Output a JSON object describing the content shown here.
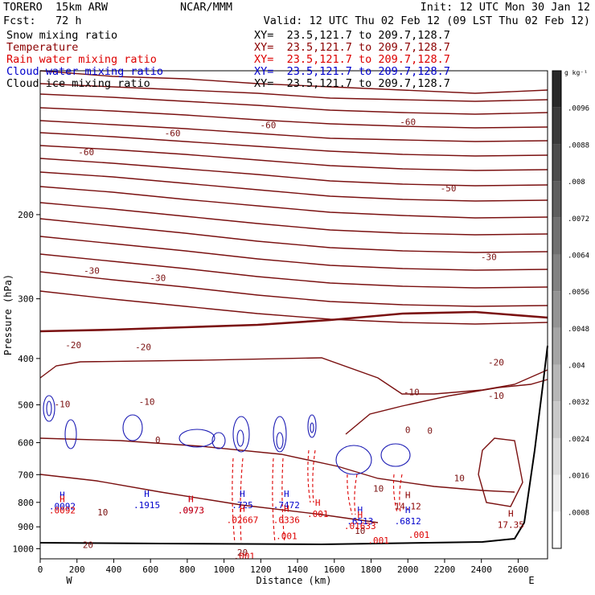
{
  "header": {
    "model": "TORERO  15km ARW",
    "center": "NCAR/MMM",
    "init": "Init: 12 UTC Mon 30 Jan 12",
    "fcst": "Fcst:   72 h",
    "valid": "Valid: 12 UTC Thu 02 Feb 12 (09 LST Thu 02 Feb 12)"
  },
  "fields": [
    {
      "name": "Snow mixing ratio",
      "xy": "XY=  23.5,121.7 to 209.7,128.7",
      "color": "#000000"
    },
    {
      "name": "Temperature",
      "xy": "XY=  23.5,121.7 to 209.7,128.7",
      "color": "#8b0000"
    },
    {
      "name": "Rain water mixing ratio",
      "xy": "XY=  23.5,121.7 to 209.7,128.7",
      "color": "#dd0000"
    },
    {
      "name": "Cloud water mixing ratio",
      "xy": "XY=  23.5,121.7 to 209.7,128.7",
      "color": "#0000cc"
    },
    {
      "name": "Cloud ice mixing ratio",
      "xy": "XY=  23.5,121.7 to 209.7,128.7",
      "color": "#000000"
    }
  ],
  "chart_data": {
    "type": "contour",
    "xlabel": "Distance (km)",
    "ylabel": "Pressure (hPa)",
    "xlim": [
      0,
      2760
    ],
    "ylim": [
      1050,
      100
    ],
    "y_scale": "log",
    "x_ticks": [
      0,
      200,
      400,
      600,
      800,
      1000,
      1200,
      1400,
      1600,
      1800,
      2000,
      2200,
      2400,
      2600
    ],
    "y_ticks": [
      200,
      300,
      400,
      500,
      600,
      700,
      800,
      900,
      1000
    ],
    "endpoint_labels": {
      "left": "W",
      "right": "E"
    },
    "colorbar": {
      "unit": "g kg⁻¹",
      "ticks": [
        ".0008",
        ".0016",
        ".0024",
        ".0032",
        ".004",
        ".0048",
        ".0056",
        ".0064",
        ".0072",
        ".008",
        ".0088",
        ".0096"
      ]
    },
    "temperature_labels": [
      {
        "x": 1240,
        "p": 130,
        "text": "-60"
      },
      {
        "x": 250,
        "p": 148,
        "text": "-60"
      },
      {
        "x": 720,
        "p": 135,
        "text": "-60"
      },
      {
        "x": 2000,
        "p": 128,
        "text": "-60"
      },
      {
        "x": 2220,
        "p": 176,
        "text": "-50"
      },
      {
        "x": 280,
        "p": 262,
        "text": "-30"
      },
      {
        "x": 2440,
        "p": 245,
        "text": "-30"
      },
      {
        "x": 640,
        "p": 271,
        "text": "-30"
      },
      {
        "x": 180,
        "p": 375,
        "text": "-20"
      },
      {
        "x": 560,
        "p": 378,
        "text": "-20"
      },
      {
        "x": 2480,
        "p": 407,
        "text": "-20"
      },
      {
        "x": 120,
        "p": 498,
        "text": "-10"
      },
      {
        "x": 580,
        "p": 492,
        "text": "-10"
      },
      {
        "x": 2020,
        "p": 470,
        "text": "-10"
      },
      {
        "x": 2480,
        "p": 478,
        "text": "-10"
      },
      {
        "x": 640,
        "p": 592,
        "text": "0"
      },
      {
        "x": 2000,
        "p": 564,
        "text": "0"
      },
      {
        "x": 2120,
        "p": 566,
        "text": "0"
      },
      {
        "x": 1840,
        "p": 748,
        "text": "10"
      },
      {
        "x": 2280,
        "p": 712,
        "text": "10"
      },
      {
        "x": 340,
        "p": 838,
        "text": "10"
      },
      {
        "x": 1740,
        "p": 917,
        "text": "10"
      },
      {
        "x": 260,
        "p": 982,
        "text": "20"
      },
      {
        "x": 1100,
        "p": 1018,
        "text": "20"
      }
    ],
    "maxima": [
      {
        "x": 120,
        "p": 815,
        "text": ".0092",
        "color": "#0000cc"
      },
      {
        "x": 120,
        "p": 830,
        "text": ".0092",
        "color": "#dd0000"
      },
      {
        "x": 580,
        "p": 810,
        "text": ".1915",
        "color": "#0000cc"
      },
      {
        "x": 820,
        "p": 830,
        "text": ".0973",
        "color": "#0000cc"
      },
      {
        "x": 820,
        "p": 830,
        "text": ".0973",
        "color": "#dd0000"
      },
      {
        "x": 1100,
        "p": 810,
        "text": ".725",
        "color": "#0000cc"
      },
      {
        "x": 1100,
        "p": 870,
        "text": ".02667",
        "color": "#dd0000"
      },
      {
        "x": 1340,
        "p": 810,
        "text": ".7472",
        "color": "#0000cc"
      },
      {
        "x": 1340,
        "p": 870,
        "text": ".0336",
        "color": "#dd0000"
      },
      {
        "x": 1510,
        "p": 845,
        "text": ".001",
        "color": "#dd0000"
      },
      {
        "x": 1740,
        "p": 875,
        "text": ".6513",
        "color": "#0000cc"
      },
      {
        "x": 1740,
        "p": 895,
        "text": ".01633",
        "color": "#dd0000"
      },
      {
        "x": 2000,
        "p": 875,
        "text": ".6812",
        "color": "#0000cc"
      },
      {
        "x": 2000,
        "p": 815,
        "text": "14.12",
        "color": "#8b0000"
      },
      {
        "x": 2560,
        "p": 890,
        "text": "17.35",
        "color": "#8b0000"
      }
    ],
    "rain_labels": [
      {
        "x": 1340,
        "p": 940,
        "text": ".001"
      },
      {
        "x": 1840,
        "p": 960,
        "text": ".001"
      },
      {
        "x": 2060,
        "p": 935,
        "text": ".001"
      },
      {
        "x": 1110,
        "p": 1035,
        "text": ".001"
      }
    ]
  }
}
